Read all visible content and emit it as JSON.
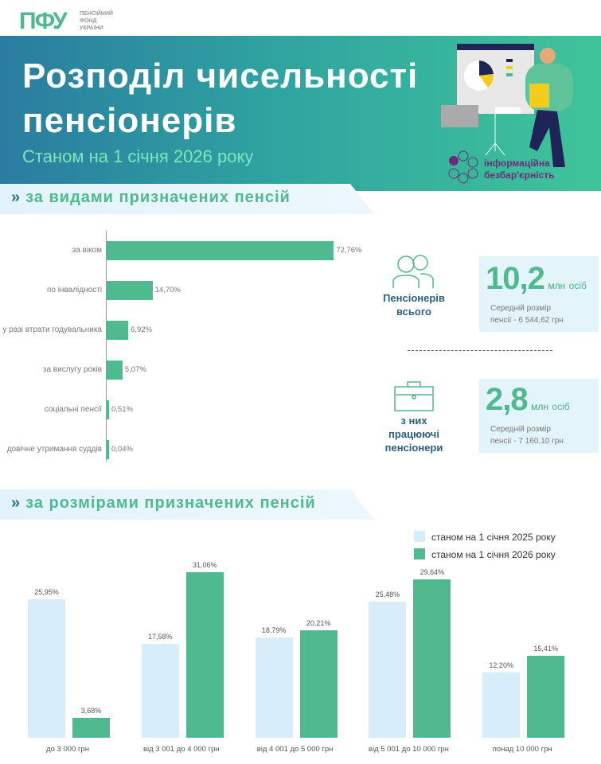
{
  "logo": {
    "mark": "ПФУ",
    "text": [
      "ПЕНСІЙНИЙ",
      "ФОНД",
      "УКРАЇНИ"
    ]
  },
  "header": {
    "title_line1": "Розподіл чисельності",
    "title_line2": "пенсіонерів",
    "subtitle": "Станом на 1 січня 2026 року",
    "badge_line1": "інформаційна",
    "badge_line2": "безбар'єрність"
  },
  "sections": {
    "by_type": "за видами призначених пенсій",
    "by_size": "за розмірами призначених пенсій",
    "chevron": "»"
  },
  "stats": {
    "total": {
      "value": "10,2",
      "unit": "млн",
      "unit2": "осіб",
      "caption_line1": "Пенсіонерів",
      "caption_line2": "всього",
      "avg_line1": "Середній розмір",
      "avg_line2": "пенсії - 6 544,62 грн"
    },
    "working": {
      "value": "2,8",
      "unit": "млн",
      "unit2": "осіб",
      "caption_line1": "з них",
      "caption_line2": "працюючі",
      "caption_line3": "пенсіонери",
      "avg_line1": "Середній розмір",
      "avg_line2": "пенсії - 7 160,10 грн"
    }
  },
  "chart_data": [
    {
      "type": "bar",
      "orientation": "horizontal",
      "categories": [
        "за віком",
        "по інвалідності",
        "у разі втрати годувальника",
        "за вислугу років",
        "соціальні пенсії",
        "довічне утримання суддів"
      ],
      "values": [
        72.76,
        14.7,
        6.92,
        5.07,
        0.51,
        0.04
      ],
      "labels": [
        "72,76%",
        "14,70%",
        "6,92%",
        "5,07%",
        "0,51%",
        "0,04%"
      ],
      "color": "#4fb98f",
      "grid": false
    },
    {
      "type": "bar",
      "orientation": "vertical",
      "categories": [
        "до 3 000 грн",
        "від 3 001 до 4 000 грн",
        "від 4 001 до 5 000 грн",
        "від 5 001 до 10 000 грн",
        "понад 10 000 грн"
      ],
      "series": [
        {
          "name": "станом на 1 січня 2025 року",
          "values": [
            25.95,
            17.58,
            18.79,
            25.48,
            12.2
          ],
          "labels": [
            "25,95%",
            "17,58%",
            "18,79%",
            "25,48%",
            "12,20%"
          ],
          "color": "#d7eefa"
        },
        {
          "name": "станом на 1 січня 2026 року",
          "values": [
            3.68,
            31.06,
            20.21,
            29.64,
            15.41
          ],
          "labels": [
            "3,68%",
            "31,06%",
            "20,21%",
            "29,64%",
            "15,41%"
          ],
          "color": "#4fb98f"
        }
      ],
      "legend": "top-right",
      "grid": false
    }
  ]
}
